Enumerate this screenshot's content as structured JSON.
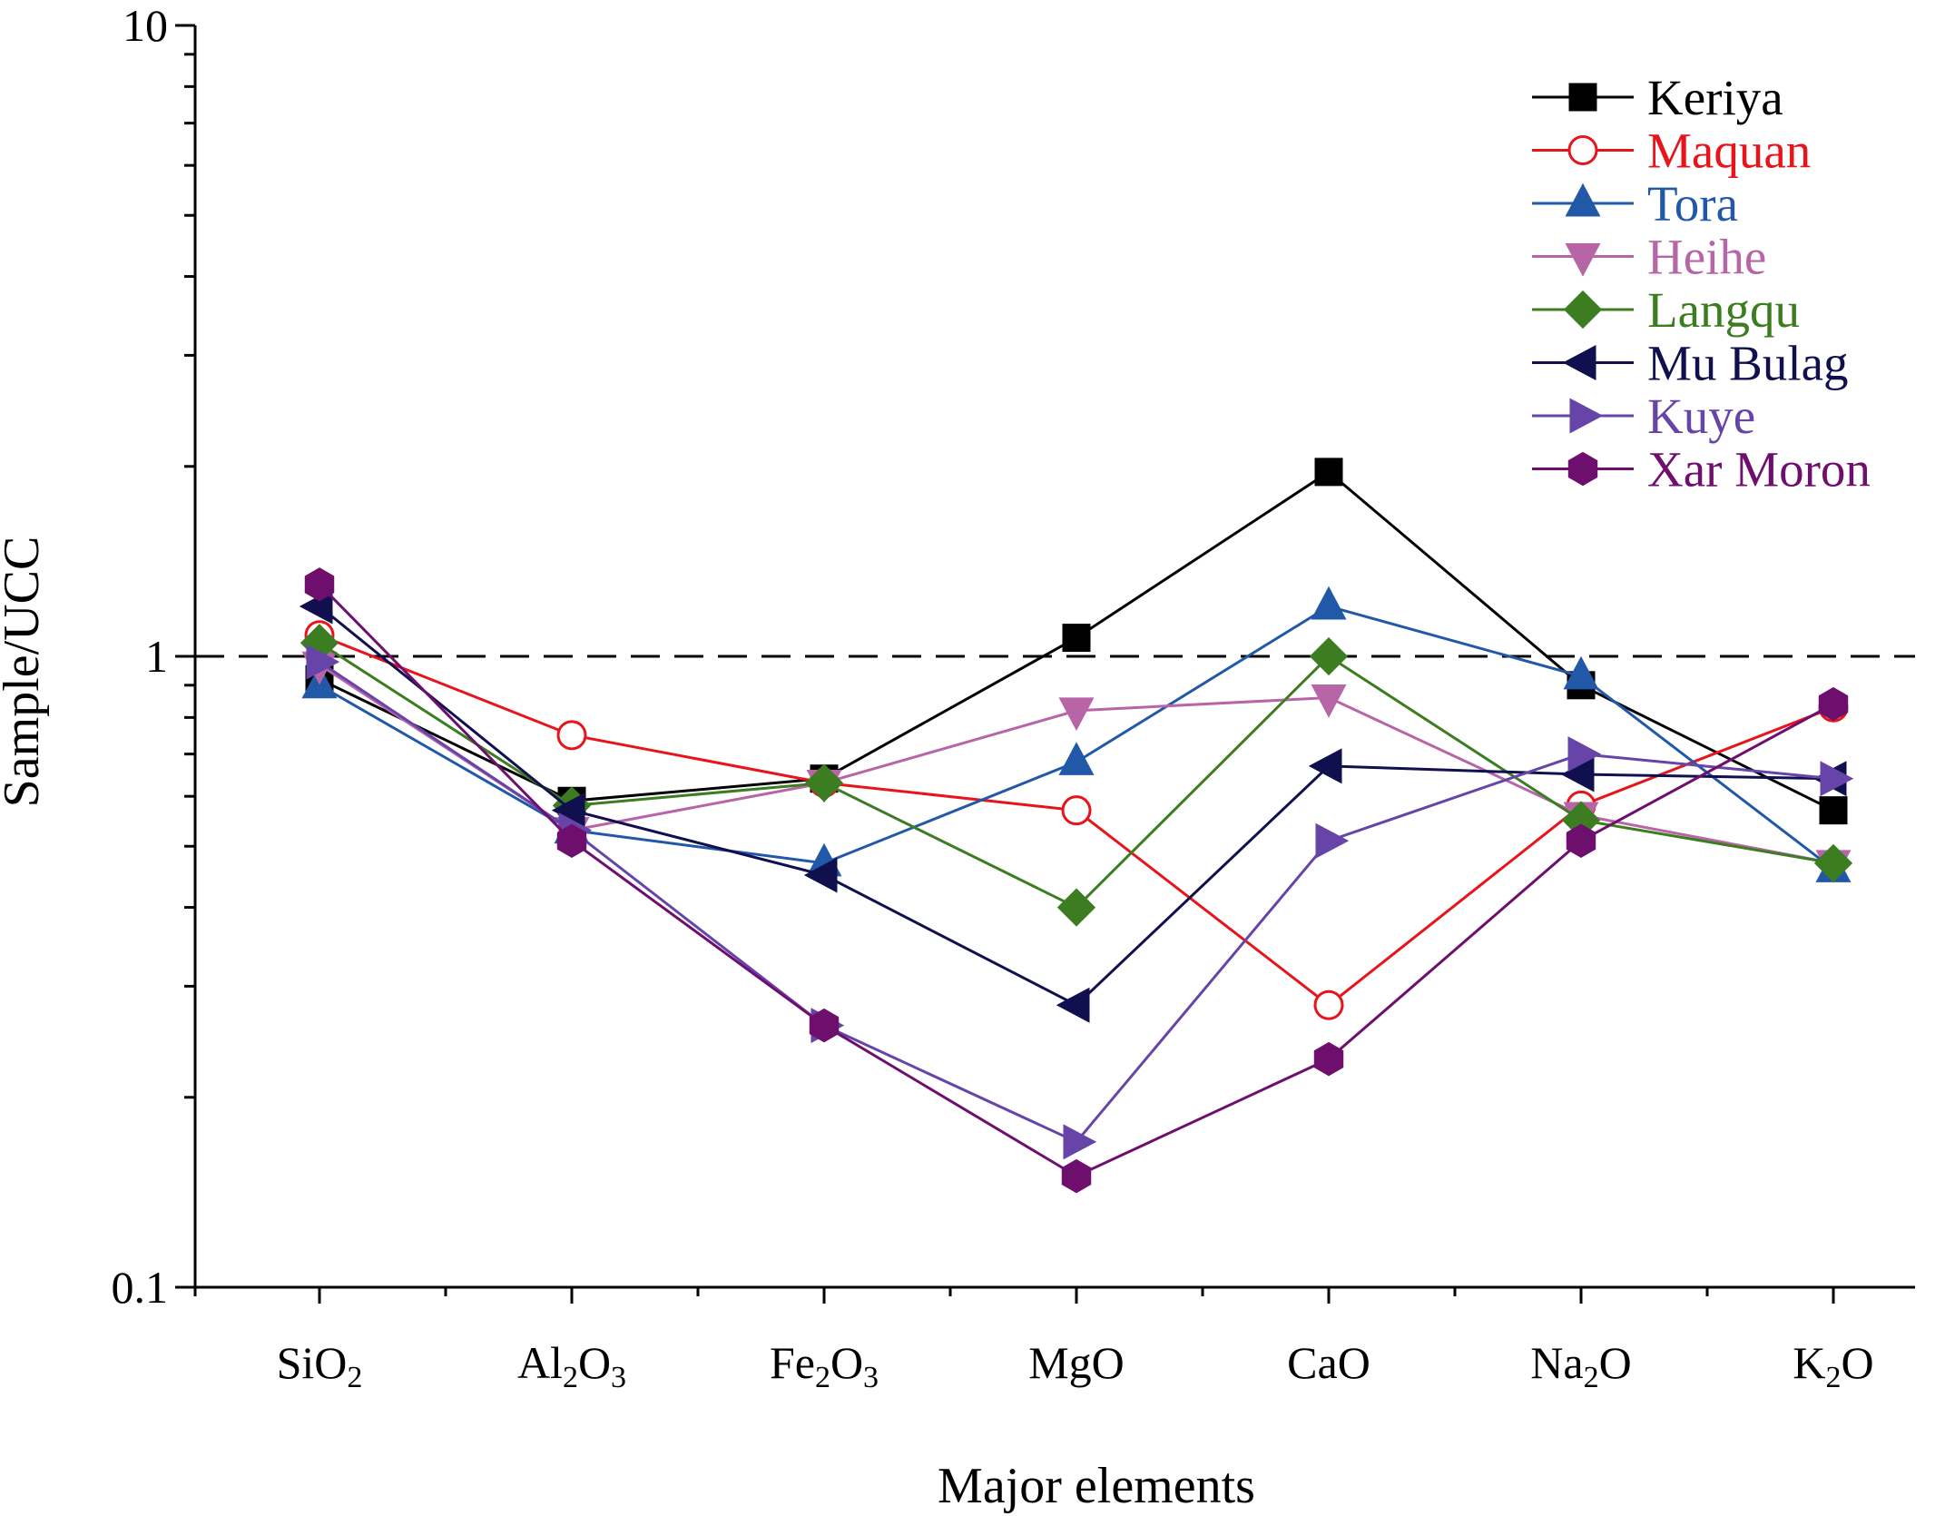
{
  "chart_data": {
    "type": "line",
    "xlabel": "Major elements",
    "ylabel": "Sample/UCC",
    "y_scale": "log",
    "ylim": [
      0.1,
      10
    ],
    "y_ticks": [
      "0.1",
      "1",
      "10"
    ],
    "reference_line": {
      "y": 1,
      "style": "dashed"
    },
    "grid": false,
    "legend_position": "top-right",
    "categories": [
      {
        "base": "SiO",
        "sub": "2",
        "tail": ""
      },
      {
        "base": "Al",
        "sub": "2",
        "tail": "O",
        "sub2": "3"
      },
      {
        "base": "Fe",
        "sub": "2",
        "tail": "O",
        "sub2": "3"
      },
      {
        "base": "MgO",
        "sub": "",
        "tail": ""
      },
      {
        "base": "CaO",
        "sub": "",
        "tail": ""
      },
      {
        "base": "Na",
        "sub": "2",
        "tail": "O"
      },
      {
        "base": "K",
        "sub": "2",
        "tail": "O"
      }
    ],
    "series": [
      {
        "name": "Keriya",
        "color": "#000000",
        "marker": "square",
        "filled": true,
        "values": [
          0.92,
          0.59,
          0.64,
          1.07,
          1.96,
          0.9,
          0.57
        ]
      },
      {
        "name": "Maquan",
        "color": "#e8141b",
        "marker": "circle",
        "filled": false,
        "values": [
          1.08,
          0.75,
          0.63,
          0.57,
          0.28,
          0.58,
          0.83
        ]
      },
      {
        "name": "Tora",
        "color": "#2158a8",
        "marker": "triangle-up",
        "filled": true,
        "values": [
          0.9,
          0.53,
          0.47,
          0.68,
          1.2,
          0.93,
          0.46
        ]
      },
      {
        "name": "Heihe",
        "color": "#b865a8",
        "marker": "triangle-down",
        "filled": true,
        "values": [
          0.97,
          0.53,
          0.63,
          0.82,
          0.86,
          0.56,
          0.47
        ]
      },
      {
        "name": "Langqu",
        "color": "#3c7d22",
        "marker": "diamond",
        "filled": true,
        "values": [
          1.05,
          0.58,
          0.63,
          0.4,
          1.0,
          0.55,
          0.47
        ]
      },
      {
        "name": "Mu Bulag",
        "color": "#10104f",
        "marker": "triangle-left",
        "filled": true,
        "values": [
          1.2,
          0.57,
          0.45,
          0.28,
          0.67,
          0.65,
          0.64
        ]
      },
      {
        "name": "Kuye",
        "color": "#6644a8",
        "marker": "triangle-right",
        "filled": true,
        "values": [
          0.98,
          0.53,
          0.26,
          0.17,
          0.51,
          0.7,
          0.64
        ]
      },
      {
        "name": "Xar Moron",
        "color": "#6e0f6e",
        "marker": "hexagon",
        "filled": true,
        "values": [
          1.3,
          0.51,
          0.26,
          0.15,
          0.23,
          0.51,
          0.84
        ]
      }
    ]
  }
}
